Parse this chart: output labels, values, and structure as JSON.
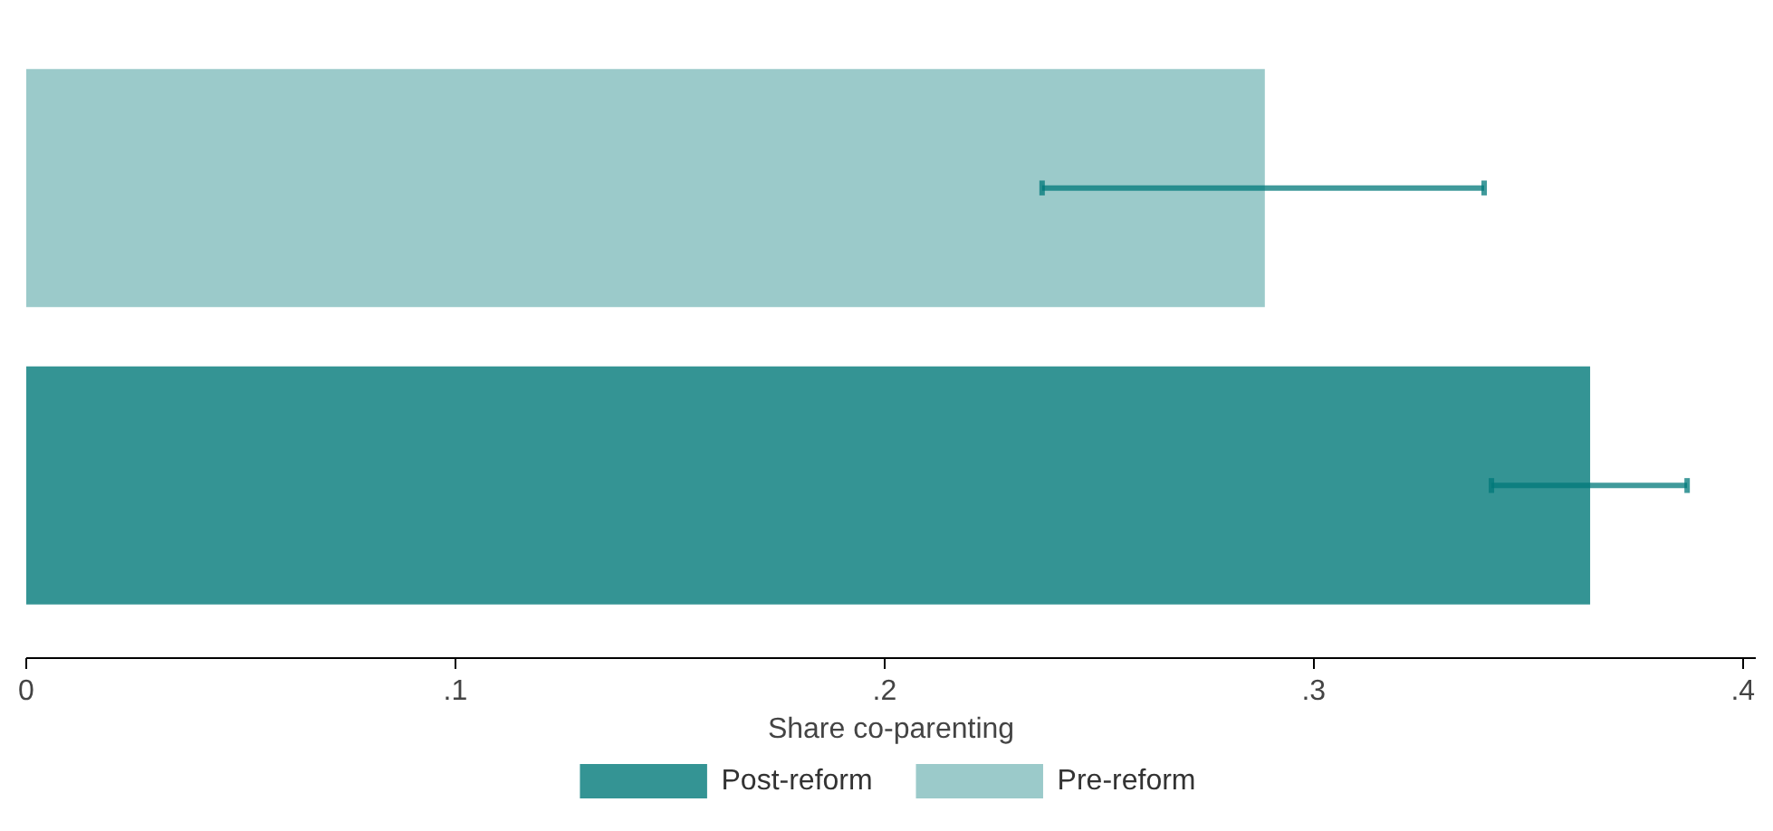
{
  "chart_data": {
    "type": "bar",
    "orientation": "horizontal",
    "categories": [
      null
    ],
    "xlabel": "Share co-parenting",
    "xlim": [
      0,
      0.403
    ],
    "xticks": [
      {
        "value": 0,
        "label": "0"
      },
      {
        "value": 0.1,
        "label": ".1"
      },
      {
        "value": 0.2,
        "label": ".2"
      },
      {
        "value": 0.3,
        "label": ".3"
      },
      {
        "value": 0.4,
        "label": ".4"
      }
    ],
    "series": [
      {
        "name": "Pre-reform",
        "color": "#9bcaca",
        "values": [
          0.2886
        ],
        "errors": [
          [
            0.2367,
            0.3397
          ]
        ]
      },
      {
        "name": "Post-reform",
        "color": "#349494",
        "values": [
          0.3644
        ],
        "errors": [
          [
            0.3414,
            0.387
          ]
        ]
      }
    ],
    "legend": "bottom",
    "grid": false
  }
}
